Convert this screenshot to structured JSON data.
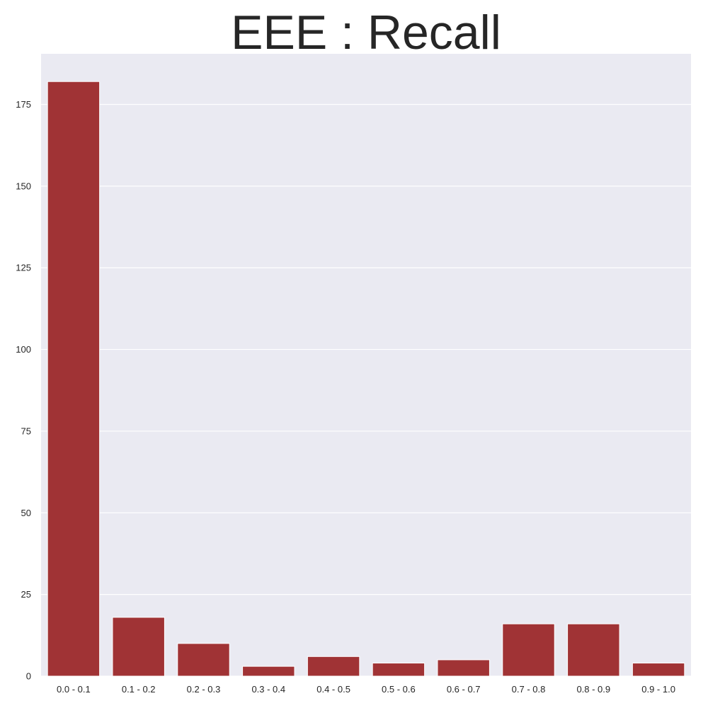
{
  "chart_data": {
    "type": "bar",
    "title": "EEE : Recall",
    "xlabel": "",
    "ylabel": "",
    "categories": [
      "0.0 - 0.1",
      "0.1 - 0.2",
      "0.2 - 0.3",
      "0.3 - 0.4",
      "0.4 - 0.5",
      "0.5 - 0.6",
      "0.6 - 0.7",
      "0.7 - 0.8",
      "0.8 - 0.9",
      "0.9 - 1.0"
    ],
    "values": [
      182,
      18,
      10,
      3,
      6,
      4,
      5,
      16,
      16,
      4
    ],
    "yticks": [
      0,
      25,
      50,
      75,
      100,
      125,
      150,
      175
    ],
    "ylim": [
      0,
      190.5
    ],
    "grid": true,
    "legend": "none",
    "colors": {
      "bar": "#a03335",
      "plot_background": "#eaeaf2",
      "grid": "#ffffff",
      "text": "#262626"
    }
  }
}
